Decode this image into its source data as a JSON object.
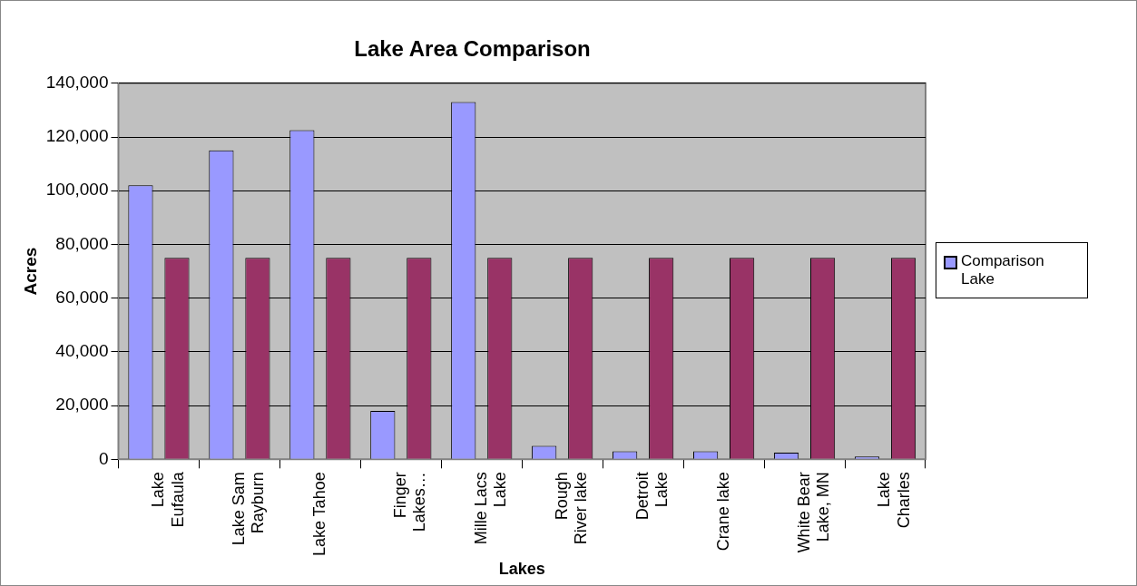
{
  "chart_data": {
    "type": "bar",
    "title": "Lake Area Comparison",
    "xlabel": "Lakes",
    "ylabel": "Acres",
    "categories": [
      "Lake Eufaula",
      "Lake Sam Rayburn",
      "Lake Tahoe",
      "Finger Lakes…",
      "Mille Lacs Lake",
      "Rough River lake",
      "Detroit Lake",
      "Crane lake",
      "White Bear Lake, MN",
      "Lake Charles"
    ],
    "series": [
      {
        "name": "Comparison Lake",
        "color": "#9999ff",
        "values": [
          102000,
          115000,
          122500,
          18000,
          133000,
          5000,
          3000,
          3000,
          2500,
          1000
        ]
      },
      {
        "color": "#993366",
        "values": [
          75000,
          75000,
          75000,
          75000,
          75000,
          75000,
          75000,
          75000,
          75000,
          75000
        ]
      }
    ],
    "ylim": [
      0,
      140000
    ],
    "yticks": [
      0,
      {
        "value": 20000,
        "label": "20,000"
      },
      {
        "value": 40000,
        "label": "40,000"
      },
      {
        "value": 60000,
        "label": "60,000"
      },
      {
        "value": 80000,
        "label": "80,000"
      },
      {
        "value": 100000,
        "label": "100,000"
      },
      {
        "value": 120000,
        "label": "120,000"
      },
      {
        "value": 140000,
        "label": "140,000"
      }
    ],
    "grid": "y",
    "legend": "right"
  }
}
